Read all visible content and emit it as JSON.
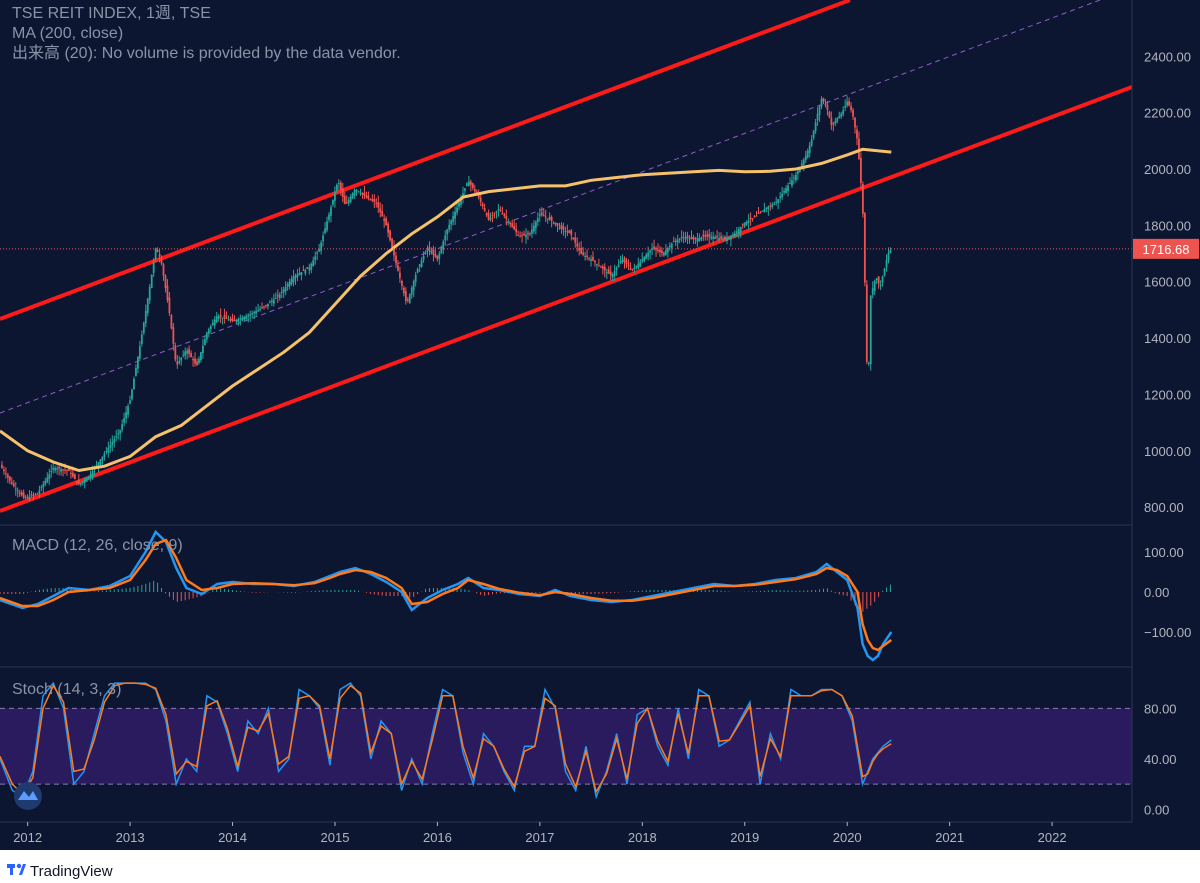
{
  "header": {
    "title": "TSE REIT INDEX, 1週, TSE",
    "ma_legend": "MA (200, close)",
    "volume_legend": "出来高 (20): No volume is provided by the data vendor."
  },
  "panes": {
    "macd_label": "MACD (12, 26, close, 9)",
    "stoch_label": "Stoch (14, 3, 3)"
  },
  "price_label": "1716.68",
  "footer": {
    "brand": "TradingView"
  },
  "colors": {
    "background": "#0c1631",
    "channel": "#ff1a1a",
    "ma": "#f5c26b",
    "up_candle": "#26a69a",
    "down_candle": "#ef5350",
    "macd_line": "#2196f3",
    "signal_line": "#ff7a1a",
    "stoch_k": "#2196f3",
    "stoch_d": "#ff7a1a",
    "stoch_band": "#2a1a5e",
    "price_line": "#ef5350"
  },
  "chart_data": [
    {
      "type": "candlestick",
      "title": "TSE REIT INDEX, 1週, TSE",
      "x_ticks": [
        "2012",
        "2013",
        "2014",
        "2015",
        "2016",
        "2017",
        "2018",
        "2019",
        "2020",
        "2021",
        "2022"
      ],
      "y_ticks": [
        800,
        1000,
        1200,
        1400,
        1600,
        1800,
        2000,
        2200,
        2400
      ],
      "ylim": [
        740,
        2600
      ],
      "xlim": [
        2011.73,
        2022.78
      ],
      "last_price": 1716.68,
      "close_path": [
        [
          2011.73,
          950
        ],
        [
          2011.85,
          880
        ],
        [
          2011.97,
          830
        ],
        [
          2012.1,
          850
        ],
        [
          2012.25,
          940
        ],
        [
          2012.4,
          930
        ],
        [
          2012.5,
          880
        ],
        [
          2012.6,
          910
        ],
        [
          2012.75,
          990
        ],
        [
          2012.9,
          1070
        ],
        [
          2013.0,
          1180
        ],
        [
          2013.1,
          1380
        ],
        [
          2013.2,
          1600
        ],
        [
          2013.25,
          1720
        ],
        [
          2013.3,
          1680
        ],
        [
          2013.38,
          1500
        ],
        [
          2013.45,
          1300
        ],
        [
          2013.55,
          1360
        ],
        [
          2013.65,
          1300
        ],
        [
          2013.75,
          1420
        ],
        [
          2013.85,
          1480
        ],
        [
          2014.0,
          1460
        ],
        [
          2014.15,
          1480
        ],
        [
          2014.3,
          1510
        ],
        [
          2014.45,
          1550
        ],
        [
          2014.6,
          1620
        ],
        [
          2014.75,
          1650
        ],
        [
          2014.85,
          1720
        ],
        [
          2014.95,
          1850
        ],
        [
          2015.03,
          1960
        ],
        [
          2015.1,
          1870
        ],
        [
          2015.2,
          1930
        ],
        [
          2015.3,
          1900
        ],
        [
          2015.4,
          1880
        ],
        [
          2015.5,
          1800
        ],
        [
          2015.6,
          1660
        ],
        [
          2015.7,
          1520
        ],
        [
          2015.8,
          1640
        ],
        [
          2015.9,
          1720
        ],
        [
          2016.0,
          1680
        ],
        [
          2016.1,
          1790
        ],
        [
          2016.2,
          1870
        ],
        [
          2016.3,
          1960
        ],
        [
          2016.4,
          1900
        ],
        [
          2016.5,
          1820
        ],
        [
          2016.6,
          1860
        ],
        [
          2016.7,
          1810
        ],
        [
          2016.8,
          1760
        ],
        [
          2016.9,
          1770
        ],
        [
          2017.0,
          1840
        ],
        [
          2017.1,
          1820
        ],
        [
          2017.2,
          1790
        ],
        [
          2017.3,
          1770
        ],
        [
          2017.4,
          1700
        ],
        [
          2017.5,
          1680
        ],
        [
          2017.6,
          1650
        ],
        [
          2017.7,
          1620
        ],
        [
          2017.8,
          1680
        ],
        [
          2017.9,
          1640
        ],
        [
          2018.0,
          1680
        ],
        [
          2018.1,
          1720
        ],
        [
          2018.2,
          1700
        ],
        [
          2018.3,
          1740
        ],
        [
          2018.4,
          1760
        ],
        [
          2018.5,
          1750
        ],
        [
          2018.6,
          1760
        ],
        [
          2018.7,
          1760
        ],
        [
          2018.8,
          1750
        ],
        [
          2018.9,
          1770
        ],
        [
          2019.0,
          1810
        ],
        [
          2019.1,
          1830
        ],
        [
          2019.2,
          1860
        ],
        [
          2019.3,
          1880
        ],
        [
          2019.4,
          1930
        ],
        [
          2019.5,
          1980
        ],
        [
          2019.6,
          2050
        ],
        [
          2019.65,
          2100
        ],
        [
          2019.7,
          2180
        ],
        [
          2019.75,
          2250
        ],
        [
          2019.8,
          2220
        ],
        [
          2019.85,
          2150
        ],
        [
          2019.9,
          2180
        ],
        [
          2019.95,
          2200
        ],
        [
          2020.0,
          2240
        ],
        [
          2020.05,
          2200
        ],
        [
          2020.1,
          2100
        ],
        [
          2020.15,
          1880
        ],
        [
          2020.18,
          1500
        ],
        [
          2020.2,
          1180
        ],
        [
          2020.23,
          1550
        ],
        [
          2020.28,
          1620
        ],
        [
          2020.32,
          1580
        ],
        [
          2020.36,
          1640
        ],
        [
          2020.4,
          1700
        ],
        [
          2020.43,
          1716.68
        ]
      ]
    },
    {
      "type": "line",
      "title": "MA (200, close)",
      "x": [
        2011.73,
        2012.0,
        2012.25,
        2012.5,
        2012.75,
        2013.0,
        2013.25,
        2013.5,
        2013.75,
        2014.0,
        2014.25,
        2014.5,
        2014.75,
        2015.0,
        2015.25,
        2015.5,
        2015.75,
        2016.0,
        2016.25,
        2016.5,
        2016.75,
        2017.0,
        2017.25,
        2017.5,
        2017.75,
        2018.0,
        2018.25,
        2018.5,
        2018.75,
        2019.0,
        2019.25,
        2019.5,
        2019.75,
        2020.0,
        2020.15,
        2020.43
      ],
      "y": [
        1070,
        1000,
        960,
        930,
        945,
        980,
        1050,
        1090,
        1160,
        1230,
        1290,
        1350,
        1420,
        1520,
        1620,
        1700,
        1770,
        1830,
        1900,
        1920,
        1930,
        1940,
        1940,
        1960,
        1970,
        1980,
        1985,
        1990,
        1995,
        1990,
        1992,
        2000,
        2020,
        2050,
        2070,
        2060
      ]
    },
    {
      "type": "line",
      "title": "MACD (12, 26, close, 9)",
      "y_ticks": [
        100,
        0,
        -100
      ],
      "ylim": [
        -185,
        165
      ],
      "x": [
        2011.73,
        2011.95,
        2012.1,
        2012.25,
        2012.4,
        2012.6,
        2012.8,
        2013.0,
        2013.15,
        2013.25,
        2013.35,
        2013.45,
        2013.55,
        2013.7,
        2013.85,
        2014.0,
        2014.2,
        2014.4,
        2014.6,
        2014.8,
        2014.95,
        2015.05,
        2015.2,
        2015.35,
        2015.5,
        2015.65,
        2015.75,
        2015.9,
        2016.05,
        2016.2,
        2016.3,
        2016.45,
        2016.6,
        2016.8,
        2017.0,
        2017.15,
        2017.3,
        2017.5,
        2017.7,
        2017.9,
        2018.1,
        2018.3,
        2018.5,
        2018.7,
        2018.9,
        2019.1,
        2019.3,
        2019.5,
        2019.7,
        2019.8,
        2019.9,
        2020.0,
        2020.1,
        2020.15,
        2020.2,
        2020.25,
        2020.3,
        2020.35,
        2020.43
      ],
      "series": [
        {
          "name": "MACD",
          "values": [
            -20,
            -40,
            -30,
            -10,
            10,
            5,
            15,
            40,
            100,
            150,
            125,
            60,
            10,
            -5,
            20,
            25,
            20,
            20,
            15,
            25,
            40,
            50,
            60,
            45,
            25,
            0,
            -45,
            -15,
            5,
            20,
            35,
            10,
            5,
            -5,
            -10,
            5,
            -10,
            -20,
            -25,
            -20,
            -10,
            0,
            10,
            20,
            15,
            20,
            30,
            35,
            50,
            70,
            50,
            30,
            -40,
            -130,
            -160,
            -170,
            -160,
            -130,
            -100
          ]
        },
        {
          "name": "Signal",
          "values": [
            -15,
            -35,
            -35,
            -20,
            0,
            5,
            10,
            30,
            80,
            120,
            130,
            85,
            30,
            5,
            10,
            20,
            22,
            20,
            17,
            22,
            35,
            45,
            55,
            50,
            35,
            10,
            -30,
            -25,
            -5,
            10,
            30,
            20,
            8,
            -2,
            -8,
            0,
            -5,
            -15,
            -22,
            -22,
            -15,
            -5,
            5,
            15,
            15,
            18,
            25,
            32,
            45,
            60,
            55,
            40,
            0,
            -80,
            -120,
            -140,
            -145,
            -135,
            -120
          ]
        }
      ],
      "histogram": true
    },
    {
      "type": "line",
      "title": "Stoch (14, 3, 3)",
      "y_ticks": [
        80,
        40,
        0
      ],
      "ylim": [
        -10,
        112
      ],
      "band": [
        20,
        80
      ],
      "x": [
        2011.73,
        2011.85,
        2011.95,
        2012.05,
        2012.15,
        2012.25,
        2012.35,
        2012.45,
        2012.55,
        2012.65,
        2012.75,
        2012.85,
        2012.95,
        2013.05,
        2013.15,
        2013.25,
        2013.35,
        2013.45,
        2013.55,
        2013.65,
        2013.75,
        2013.85,
        2013.95,
        2014.05,
        2014.15,
        2014.25,
        2014.35,
        2014.45,
        2014.55,
        2014.65,
        2014.75,
        2014.85,
        2014.95,
        2015.05,
        2015.15,
        2015.25,
        2015.35,
        2015.45,
        2015.55,
        2015.65,
        2015.75,
        2015.85,
        2015.95,
        2016.05,
        2016.15,
        2016.25,
        2016.35,
        2016.45,
        2016.55,
        2016.65,
        2016.75,
        2016.85,
        2016.95,
        2017.05,
        2017.15,
        2017.25,
        2017.35,
        2017.45,
        2017.55,
        2017.65,
        2017.75,
        2017.85,
        2017.95,
        2018.05,
        2018.15,
        2018.25,
        2018.35,
        2018.45,
        2018.55,
        2018.65,
        2018.75,
        2018.85,
        2018.95,
        2019.05,
        2019.15,
        2019.25,
        2019.35,
        2019.45,
        2019.55,
        2019.65,
        2019.75,
        2019.85,
        2019.95,
        2020.05,
        2020.15,
        2020.2,
        2020.25,
        2020.3,
        2020.35,
        2020.43
      ],
      "series": [
        {
          "name": "%K",
          "values": [
            40,
            15,
            10,
            30,
            90,
            100,
            80,
            20,
            30,
            60,
            90,
            100,
            100,
            100,
            100,
            95,
            70,
            20,
            40,
            30,
            90,
            85,
            60,
            30,
            70,
            60,
            80,
            30,
            40,
            95,
            90,
            80,
            35,
            95,
            100,
            90,
            40,
            70,
            60,
            15,
            40,
            20,
            60,
            95,
            90,
            45,
            20,
            60,
            50,
            30,
            15,
            50,
            50,
            95,
            80,
            30,
            15,
            50,
            10,
            30,
            60,
            20,
            75,
            80,
            50,
            35,
            80,
            40,
            95,
            90,
            50,
            55,
            70,
            85,
            20,
            60,
            40,
            95,
            90,
            90,
            95,
            95,
            90,
            70,
            20,
            30,
            40,
            45,
            50,
            55
          ]
        },
        {
          "name": "%D",
          "values": [
            42,
            20,
            12,
            25,
            80,
            98,
            85,
            30,
            32,
            55,
            85,
            98,
            100,
            100,
            99,
            96,
            75,
            28,
            38,
            34,
            82,
            86,
            64,
            34,
            65,
            62,
            76,
            36,
            42,
            88,
            90,
            82,
            40,
            88,
            98,
            92,
            45,
            66,
            60,
            20,
            38,
            24,
            55,
            90,
            90,
            50,
            25,
            56,
            50,
            32,
            18,
            46,
            50,
            88,
            82,
            36,
            18,
            46,
            14,
            28,
            56,
            24,
            68,
            80,
            54,
            38,
            76,
            44,
            90,
            90,
            54,
            55,
            68,
            82,
            26,
            56,
            42,
            90,
            90,
            90,
            94,
            95,
            90,
            74,
            26,
            28,
            38,
            44,
            48,
            52
          ]
        }
      ]
    }
  ]
}
